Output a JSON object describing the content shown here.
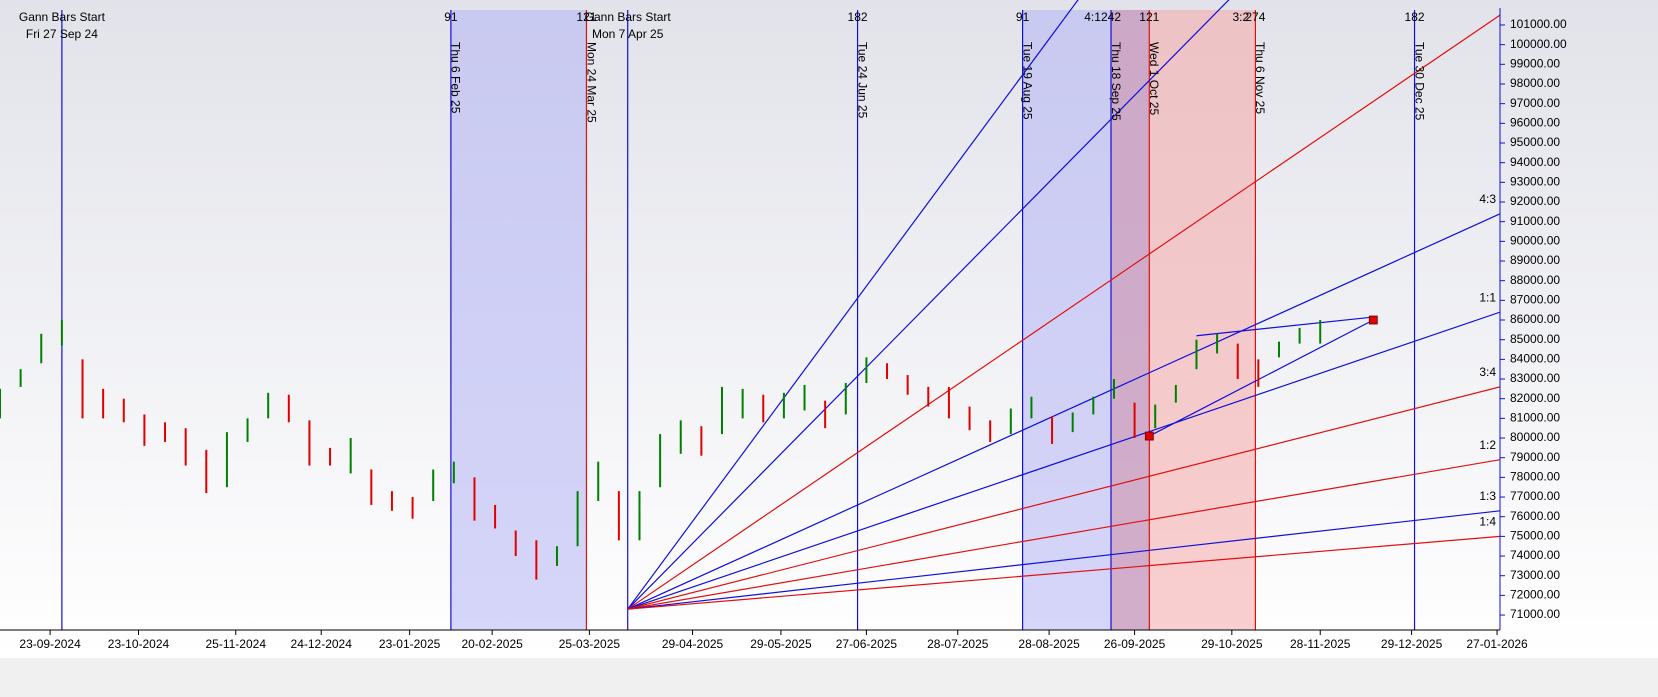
{
  "chart_data": {
    "type": "hilo",
    "xlim": [
      "06-09-2024",
      "28-01-2026"
    ],
    "ylim": [
      70240,
      102270
    ],
    "xticks": [
      "23-09-2024",
      "23-10-2024",
      "25-11-2024",
      "24-12-2024",
      "23-01-2025",
      "20-02-2025",
      "25-03-2025",
      "29-04-2025",
      "29-05-2025",
      "27-06-2025",
      "28-07-2025",
      "28-08-2025",
      "26-09-2025",
      "29-10-2025",
      "28-11-2025",
      "29-12-2025",
      "27-01-2026"
    ],
    "yticks": [
      {
        "value": 101000,
        "label": "101000.00"
      },
      {
        "value": 100000,
        "label": "100000.00"
      },
      {
        "value": 99000,
        "label": "99000.00"
      },
      {
        "value": 98000,
        "label": "98000.00"
      },
      {
        "value": 97000,
        "label": "97000.00"
      },
      {
        "value": 96000,
        "label": "96000.00"
      },
      {
        "value": 95000,
        "label": "95000.00"
      },
      {
        "value": 94000,
        "label": "94000.00"
      },
      {
        "value": 93000,
        "label": "93000.00"
      },
      {
        "value": 92000,
        "label": "92000.00"
      },
      {
        "value": 91000,
        "label": "91000.00"
      },
      {
        "value": 90000,
        "label": "90000.00"
      },
      {
        "value": 89000,
        "label": "89000.00"
      },
      {
        "value": 88000,
        "label": "88000.00"
      },
      {
        "value": 87000,
        "label": "87000.00"
      },
      {
        "value": 86000,
        "label": "86000.00"
      },
      {
        "value": 85000,
        "label": "85000.00"
      },
      {
        "value": 84000,
        "label": "84000.00"
      },
      {
        "value": 83000,
        "label": "83000.00"
      },
      {
        "value": 82000,
        "label": "82000.00"
      },
      {
        "value": 81000,
        "label": "81000.00"
      },
      {
        "value": 80000,
        "label": "80000.00"
      },
      {
        "value": 79000,
        "label": "79000.00"
      },
      {
        "value": 78000,
        "label": "78000.00"
      },
      {
        "value": 77000,
        "label": "77000.00"
      },
      {
        "value": 76000,
        "label": "76000.00"
      },
      {
        "value": 75000,
        "label": "75000.00"
      },
      {
        "value": 74000,
        "label": "74000.00"
      },
      {
        "value": 73000,
        "label": "73000.00"
      },
      {
        "value": 72000,
        "label": "72000.00"
      },
      {
        "value": 71000,
        "label": "71000.00"
      }
    ],
    "up_color": "#008000",
    "down_color": "#e00000",
    "bars": {
      "x": [
        "06-09-2024",
        "13-09-2024",
        "20-09-2024",
        "27-09-2024",
        "04-10-2024",
        "11-10-2024",
        "18-10-2024",
        "25-10-2024",
        "01-11-2024",
        "08-11-2024",
        "15-11-2024",
        "22-11-2024",
        "29-11-2024",
        "06-12-2024",
        "13-12-2024",
        "20-12-2024",
        "27-12-2024",
        "03-01-2025",
        "10-01-2025",
        "17-01-2025",
        "24-01-2025",
        "31-01-2025",
        "07-02-2025",
        "14-02-2025",
        "21-02-2025",
        "28-02-2025",
        "07-03-2025",
        "14-03-2025",
        "21-03-2025",
        "28-03-2025",
        "04-04-2025",
        "11-04-2025",
        "18-04-2025",
        "25-04-2025",
        "02-05-2025",
        "09-05-2025",
        "16-05-2025",
        "23-05-2025",
        "30-05-2025",
        "06-06-2025",
        "13-06-2025",
        "20-06-2025",
        "27-06-2025",
        "04-07-2025",
        "11-07-2025",
        "18-07-2025",
        "25-07-2025",
        "01-08-2025",
        "08-08-2025",
        "15-08-2025",
        "22-08-2025",
        "29-08-2025",
        "05-09-2025",
        "12-09-2025",
        "19-09-2025",
        "26-09-2025",
        "03-10-2025",
        "10-10-2025",
        "17-10-2025",
        "24-10-2025",
        "31-10-2025",
        "07-11-2025",
        "14-11-2025",
        "21-11-2025",
        "28-11-2025"
      ],
      "high": [
        82500,
        83500,
        85300,
        86000,
        84000,
        82500,
        82000,
        81200,
        80800,
        80500,
        79400,
        80300,
        81000,
        82300,
        82200,
        80900,
        79500,
        80000,
        78400,
        77300,
        77000,
        78400,
        78800,
        78000,
        76600,
        75300,
        74800,
        74500,
        77300,
        78800,
        77300,
        77300,
        80200,
        80900,
        80600,
        82600,
        82500,
        82200,
        82300,
        82700,
        81900,
        82800,
        84100,
        83800,
        83200,
        82600,
        82600,
        81600,
        80900,
        81500,
        82100,
        81100,
        81300,
        82100,
        83000,
        81800,
        81700,
        82700,
        85000,
        85300,
        84800,
        84000,
        84900,
        85600,
        86000
      ],
      "low": [
        81000,
        82600,
        83800,
        84700,
        81000,
        81000,
        80800,
        79600,
        79800,
        78600,
        77200,
        77500,
        79800,
        81000,
        80800,
        78600,
        78600,
        78200,
        76600,
        76300,
        75900,
        76800,
        77700,
        75800,
        75400,
        74000,
        72800,
        73500,
        74500,
        76800,
        74800,
        74800,
        77500,
        79200,
        79100,
        80200,
        81000,
        80800,
        81000,
        81400,
        80500,
        81200,
        82800,
        83000,
        82200,
        81600,
        81000,
        80400,
        79800,
        80200,
        81000,
        79700,
        80300,
        81200,
        82000,
        80000,
        80500,
        81800,
        83500,
        84300,
        83000,
        82600,
        84100,
        84800,
        84800
      ]
    },
    "zones": [
      {
        "from": "06-02-2025",
        "to": "24-03-2025",
        "color": "#b4b4f5"
      },
      {
        "from": "19-08-2025",
        "to": "01-10-2025",
        "color": "#b4b4f5"
      },
      {
        "from": "18-09-2025",
        "to": "06-11-2025",
        "color": "#f5a8a8"
      }
    ],
    "events": [
      {
        "date": "27-09-2024",
        "color": "#1010d8",
        "heading": "Gann Bars Start",
        "label": "Fri 27 Sep 24"
      },
      {
        "date": "06-02-2025",
        "color": "#1010d8",
        "count": 91,
        "label": "Thu 6 Feb 25"
      },
      {
        "date": "24-03-2025",
        "color": "#e01010",
        "count": 121,
        "label": "Mon 24 Mar 25"
      },
      {
        "date": "07-04-2025",
        "color": "#1010d8",
        "heading": "Gann Bars Start",
        "label": "Mon 7 Apr 25"
      },
      {
        "date": "24-06-2025",
        "color": "#1010d8",
        "count": 182,
        "label": "Tue 24 Jun 25"
      },
      {
        "date": "19-08-2025",
        "color": "#1010d8",
        "count": 91,
        "label": "Tue 19 Aug 25"
      },
      {
        "date": "18-09-2025",
        "color": "#1010d8",
        "count": 242,
        "label": "Thu 18 Sep 25"
      },
      {
        "date": "01-10-2025",
        "color": "#e01010",
        "count": 121,
        "label": "Wed 1 Oct 25"
      },
      {
        "date": "06-11-2025",
        "color": "#e01010",
        "count": 274,
        "label": "Thu 6 Nov 25"
      },
      {
        "date": "30-12-2025",
        "color": "#1010d8",
        "count": 182,
        "label": "Tue 30 Dec 25"
      }
    ],
    "fan": {
      "origin": {
        "date": "07-04-2025",
        "value": 71300
      },
      "lines": [
        {
          "end_value": 131300,
          "color": "#1010d8",
          "label": "4:1"
        },
        {
          "end_value": 116250,
          "color": "#1010d8",
          "label": "3:2"
        },
        {
          "end_value": 101500,
          "color": "#e01010"
        },
        {
          "end_value": 91400,
          "color": "#1010d8",
          "label": "4:3"
        },
        {
          "end_value": 86400,
          "color": "#1010d8",
          "label": "1:1"
        },
        {
          "end_value": 82600,
          "color": "#e01010",
          "label": "3:4"
        },
        {
          "end_value": 78900,
          "color": "#e01010",
          "label": "1:2"
        },
        {
          "end_value": 76300,
          "color": "#1010d8",
          "label": "1:3"
        },
        {
          "end_value": 75000,
          "color": "#e01010",
          "label": "1:4"
        }
      ]
    },
    "trendlines": [
      {
        "from": {
          "date": "01-10-2025",
          "value": 80100
        },
        "to": {
          "date": "16-12-2025",
          "value": 86000
        },
        "color": "#1010d8"
      },
      {
        "from": {
          "date": "17-10-2025",
          "value": 85200
        },
        "to": {
          "date": "16-12-2025",
          "value": 86150
        },
        "color": "#1010d8"
      }
    ],
    "markers": [
      {
        "date": "01-10-2025",
        "value": 80100,
        "color": "#e00000"
      },
      {
        "date": "16-12-2025",
        "value": 86000,
        "color": "#e00000"
      }
    ]
  }
}
